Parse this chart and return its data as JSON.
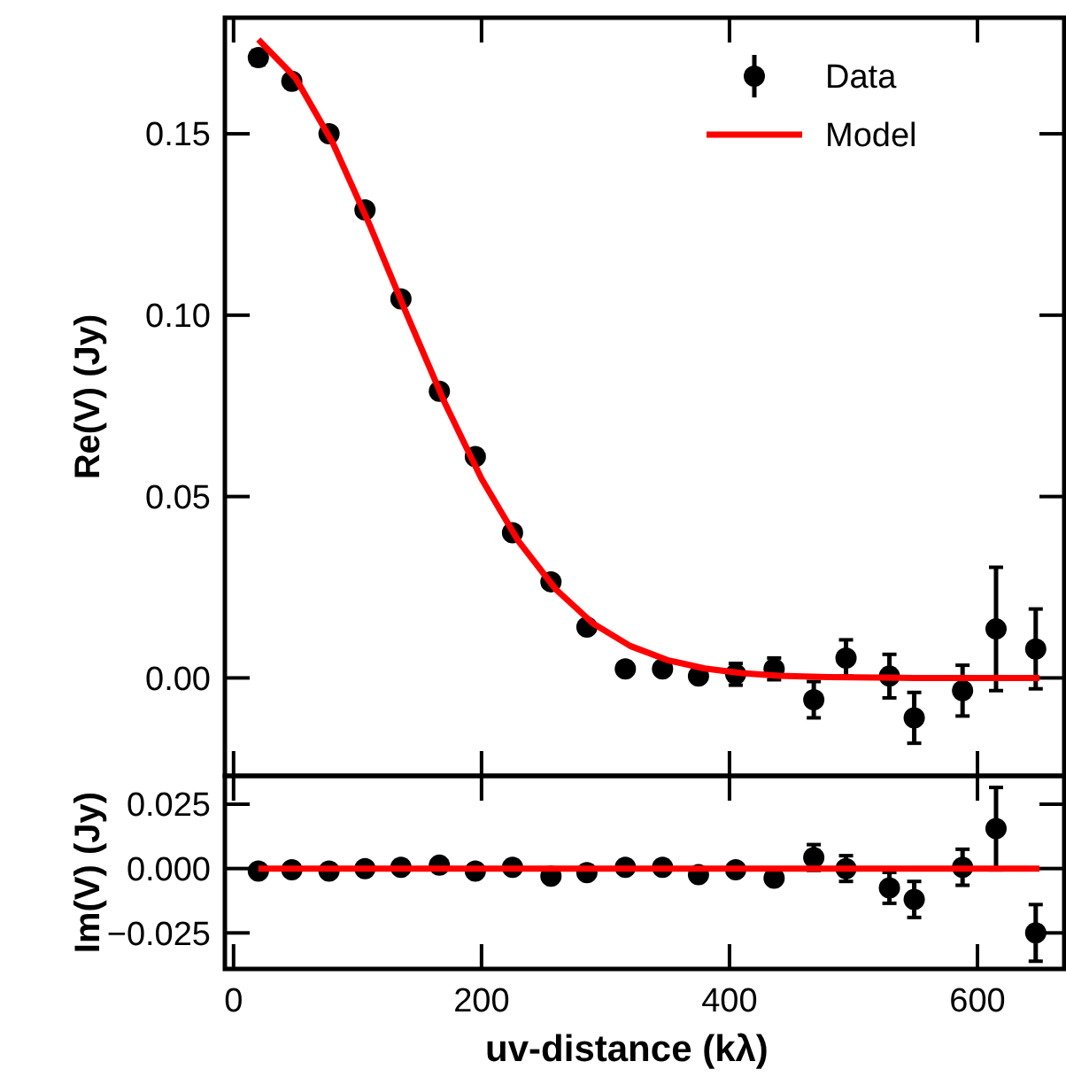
{
  "chart_data": [
    {
      "type": "scatter",
      "ylabel": "Re(V) (Jy)",
      "xlim": [
        -7,
        670
      ],
      "xticks": [
        {
          "value": 0,
          "label": null
        },
        {
          "value": 200,
          "label": null
        },
        {
          "value": 400,
          "label": null
        },
        {
          "value": 600,
          "label": null
        }
      ],
      "ylim": [
        -0.027,
        0.182
      ],
      "yticks": [
        {
          "value": 0,
          "label": "0.00"
        },
        {
          "value": 0.05,
          "label": "0.05"
        },
        {
          "value": 0.1,
          "label": "0.10"
        },
        {
          "value": 0.15,
          "label": "0.15"
        }
      ],
      "tick_labels": "y",
      "legend": "top right",
      "grid": false,
      "series": [
        {
          "name": "Data",
          "marker": "circle",
          "color": "#000000",
          "x": [
            20,
            47,
            77,
            106,
            135,
            166,
            195,
            225,
            256,
            285,
            316,
            346,
            375,
            405,
            436,
            468,
            494,
            529,
            549,
            588,
            615,
            647
          ],
          "values": [
            0.171,
            0.1645,
            0.15,
            0.129,
            0.1045,
            0.079,
            0.061,
            0.04,
            0.0265,
            0.014,
            0.0025,
            0.0025,
            0.0005,
            0.001,
            0.0025,
            -0.006,
            0.0055,
            0.0005,
            -0.011,
            -0.0035,
            0.0135,
            0.008
          ],
          "errors": [
            0.002,
            null,
            null,
            null,
            null,
            null,
            null,
            null,
            null,
            null,
            null,
            null,
            null,
            0.003,
            0.003,
            0.005,
            0.005,
            0.006,
            0.007,
            0.007,
            0.017,
            0.011
          ]
        },
        {
          "name": "Model",
          "type": "line",
          "line_style": "solid",
          "color": "#ff0000",
          "x": [
            20,
            50,
            80,
            110,
            140,
            170,
            200,
            230,
            260,
            290,
            320,
            350,
            380,
            410,
            440,
            480,
            550,
            650
          ],
          "values": [
            0.176,
            0.1654,
            0.1475,
            0.1247,
            0.1,
            0.0761,
            0.0549,
            0.0376,
            0.0244,
            0.015,
            0.0088,
            0.0049,
            0.0026,
            0.0013,
            0.0006,
            0.0002,
            0,
            0
          ]
        }
      ]
    },
    {
      "type": "scatter",
      "ylabel": "Im(V) (Jy)",
      "xlabel": "uv-distance (kλ)",
      "xlim": [
        -7,
        670
      ],
      "xticks": [
        0,
        200,
        400,
        600
      ],
      "ylim": [
        -0.039,
        0.036
      ],
      "yticks": [
        {
          "value": -0.025,
          "label": "−0.025"
        },
        {
          "value": 0,
          "label": "0.000"
        },
        {
          "value": 0.025,
          "label": "0.025"
        }
      ],
      "legend": false,
      "grid": false,
      "series": [
        {
          "marker": "circle",
          "color": "#000000",
          "x": [
            20,
            47,
            77,
            106,
            135,
            166,
            195,
            225,
            256,
            285,
            316,
            346,
            375,
            405,
            436,
            468,
            494,
            529,
            549,
            588,
            615,
            647
          ],
          "values": [
            -0.001,
            -0.0005,
            -0.001,
            0,
            0.0005,
            0.0013,
            -0.001,
            0.0005,
            -0.003,
            -0.0016,
            0.0005,
            0.0005,
            -0.0024,
            -0.0005,
            -0.0037,
            0.0043,
            0,
            -0.0075,
            -0.012,
            0.0005,
            0.0155,
            -0.025
          ],
          "errors": [
            null,
            null,
            null,
            null,
            null,
            null,
            null,
            null,
            null,
            null,
            null,
            null,
            null,
            null,
            0.002,
            0.005,
            0.005,
            0.006,
            0.007,
            0.007,
            0.016,
            0.011
          ]
        },
        {
          "type": "line",
          "line_style": "solid",
          "color": "#ff0000",
          "x": [
            20,
            650
          ],
          "values": [
            0,
            0
          ]
        }
      ]
    }
  ]
}
